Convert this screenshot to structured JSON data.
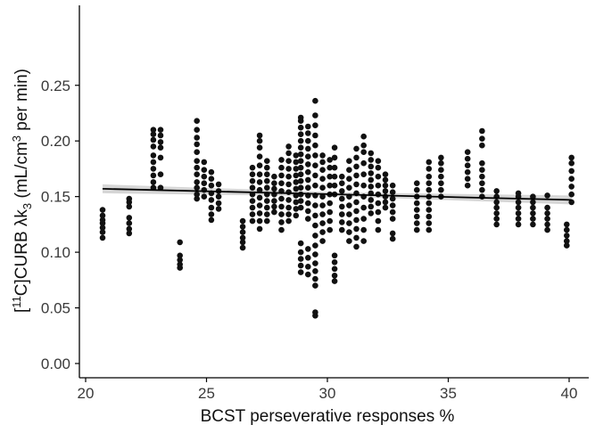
{
  "chart_data": {
    "type": "scatter",
    "xlabel": "BCST perseverative responses %",
    "ylabel_parts": {
      "pre": "[",
      "sup1": "11",
      "mid": "C]CURB λk",
      "sub": "3",
      "post": " (mL/cm",
      "sup2": "3",
      "end": " per min)"
    },
    "xlim": [
      20,
      40.5
    ],
    "ylim": [
      0,
      0.25
    ],
    "x_ticks": [
      20,
      25,
      30,
      35,
      40
    ],
    "x_tick_labels": [
      "20",
      "25",
      "30",
      "35",
      "40"
    ],
    "y_ticks": [
      0.0,
      0.05,
      0.1,
      0.15,
      0.2,
      0.25
    ],
    "y_tick_labels": [
      "0.00",
      "0.05",
      "0.10",
      "0.15",
      "0.20",
      "0.25"
    ],
    "grid": false,
    "legend": "none",
    "regression": {
      "x": [
        20.7,
        40.1
      ],
      "y": [
        0.157,
        0.147
      ],
      "ci_halfwidth": 0.004
    },
    "columns": [
      {
        "x": 20.7,
        "y": [
          0.113,
          0.118,
          0.122,
          0.126,
          0.129,
          0.133,
          0.138
        ]
      },
      {
        "x": 21.8,
        "y": [
          0.117,
          0.121,
          0.126,
          0.131,
          0.141,
          0.145,
          0.148
        ]
      },
      {
        "x": 22.8,
        "y": [
          0.158,
          0.163,
          0.169,
          0.175,
          0.181,
          0.187,
          0.195,
          0.201,
          0.206,
          0.21
        ]
      },
      {
        "x": 23.1,
        "y": [
          0.158,
          0.17,
          0.185,
          0.194,
          0.199,
          0.205,
          0.21
        ]
      },
      {
        "x": 23.9,
        "y": [
          0.086,
          0.089,
          0.093,
          0.097,
          0.109
        ]
      },
      {
        "x": 24.6,
        "y": [
          0.148,
          0.152,
          0.158,
          0.163,
          0.17,
          0.176,
          0.182,
          0.19,
          0.197,
          0.203,
          0.21,
          0.218
        ]
      },
      {
        "x": 24.9,
        "y": [
          0.15,
          0.156,
          0.162,
          0.168,
          0.174,
          0.181
        ]
      },
      {
        "x": 25.2,
        "y": [
          0.129,
          0.134,
          0.14,
          0.147,
          0.153,
          0.16,
          0.166,
          0.172
        ]
      },
      {
        "x": 25.5,
        "y": [
          0.139,
          0.144,
          0.15,
          0.155,
          0.161
        ]
      },
      {
        "x": 26.5,
        "y": [
          0.104,
          0.109,
          0.113,
          0.118,
          0.123,
          0.128
        ]
      },
      {
        "x": 26.9,
        "y": [
          0.128,
          0.134,
          0.14,
          0.146,
          0.152,
          0.158,
          0.164,
          0.17,
          0.176
        ]
      },
      {
        "x": 27.2,
        "y": [
          0.121,
          0.128,
          0.135,
          0.142,
          0.149,
          0.156,
          0.163,
          0.17,
          0.178,
          0.186,
          0.194,
          0.2,
          0.205
        ]
      },
      {
        "x": 27.5,
        "y": [
          0.128,
          0.134,
          0.14,
          0.146,
          0.152,
          0.158,
          0.164,
          0.17,
          0.176,
          0.182
        ]
      },
      {
        "x": 27.8,
        "y": [
          0.136,
          0.141,
          0.146,
          0.152,
          0.157,
          0.162,
          0.168
        ]
      },
      {
        "x": 28.1,
        "y": [
          0.12,
          0.127,
          0.134,
          0.141,
          0.148,
          0.155,
          0.162,
          0.169,
          0.176,
          0.183
        ]
      },
      {
        "x": 28.4,
        "y": [
          0.128,
          0.134,
          0.14,
          0.147,
          0.154,
          0.161,
          0.168,
          0.175,
          0.182,
          0.189,
          0.195
        ]
      },
      {
        "x": 28.7,
        "y": [
          0.133,
          0.139,
          0.145,
          0.151,
          0.157,
          0.163,
          0.169,
          0.175,
          0.181,
          0.187
        ]
      },
      {
        "x": 28.9,
        "y": [
          0.082,
          0.088,
          0.094,
          0.1,
          0.108,
          0.14,
          0.146,
          0.152,
          0.158,
          0.164,
          0.17,
          0.176,
          0.182,
          0.188,
          0.194,
          0.2,
          0.206,
          0.212,
          0.218,
          0.221
        ]
      },
      {
        "x": 29.2,
        "y": [
          0.08,
          0.087,
          0.095,
          0.103,
          0.13,
          0.137,
          0.144,
          0.151,
          0.158,
          0.165,
          0.172,
          0.179,
          0.186,
          0.193,
          0.2,
          0.207,
          0.213
        ]
      },
      {
        "x": 29.5,
        "y": [
          0.043,
          0.046,
          0.07,
          0.076,
          0.083,
          0.09,
          0.098,
          0.106,
          0.115,
          0.124,
          0.133,
          0.142,
          0.151,
          0.16,
          0.169,
          0.178,
          0.187,
          0.196,
          0.205,
          0.214,
          0.223,
          0.236
        ]
      },
      {
        "x": 29.8,
        "y": [
          0.11,
          0.118,
          0.126,
          0.134,
          0.142,
          0.15,
          0.158,
          0.166,
          0.174,
          0.181,
          0.187
        ]
      },
      {
        "x": 30.1,
        "y": [
          0.12,
          0.128,
          0.136,
          0.144,
          0.152,
          0.16,
          0.168,
          0.176,
          0.183
        ]
      },
      {
        "x": 30.3,
        "y": [
          0.074,
          0.079,
          0.085,
          0.091,
          0.097,
          0.152,
          0.16,
          0.168,
          0.176,
          0.185,
          0.194
        ]
      },
      {
        "x": 30.6,
        "y": [
          0.12,
          0.127,
          0.134,
          0.141,
          0.148,
          0.155,
          0.162,
          0.168
        ]
      },
      {
        "x": 30.9,
        "y": [
          0.11,
          0.118,
          0.126,
          0.134,
          0.142,
          0.15,
          0.158,
          0.166,
          0.174,
          0.182
        ]
      },
      {
        "x": 31.2,
        "y": [
          0.105,
          0.113,
          0.121,
          0.129,
          0.137,
          0.145,
          0.153,
          0.161,
          0.169,
          0.177,
          0.185,
          0.193
        ]
      },
      {
        "x": 31.5,
        "y": [
          0.11,
          0.12,
          0.13,
          0.14,
          0.15,
          0.16,
          0.17,
          0.18,
          0.19,
          0.196,
          0.204
        ]
      },
      {
        "x": 31.8,
        "y": [
          0.135,
          0.141,
          0.147,
          0.153,
          0.159,
          0.165,
          0.171,
          0.177,
          0.183,
          0.189
        ]
      },
      {
        "x": 32.1,
        "y": [
          0.12,
          0.128,
          0.136,
          0.144,
          0.152,
          0.16,
          0.168,
          0.176,
          0.182
        ]
      },
      {
        "x": 32.4,
        "y": [
          0.14,
          0.145,
          0.15,
          0.155,
          0.16,
          0.165,
          0.17
        ]
      },
      {
        "x": 32.7,
        "y": [
          0.112,
          0.117,
          0.13,
          0.136,
          0.142,
          0.148,
          0.154,
          0.16
        ]
      },
      {
        "x": 33.7,
        "y": [
          0.12,
          0.126,
          0.132,
          0.138,
          0.144,
          0.15,
          0.156,
          0.162
        ]
      },
      {
        "x": 34.2,
        "y": [
          0.12,
          0.126,
          0.132,
          0.138,
          0.144,
          0.15,
          0.156,
          0.162,
          0.168,
          0.175,
          0.181
        ]
      },
      {
        "x": 34.7,
        "y": [
          0.15,
          0.156,
          0.162,
          0.168,
          0.174,
          0.18,
          0.185
        ]
      },
      {
        "x": 35.8,
        "y": [
          0.16,
          0.166,
          0.172,
          0.178,
          0.184,
          0.19
        ]
      },
      {
        "x": 36.4,
        "y": [
          0.15,
          0.156,
          0.162,
          0.168,
          0.174,
          0.18,
          0.196,
          0.202,
          0.209
        ]
      },
      {
        "x": 37.0,
        "y": [
          0.125,
          0.13,
          0.135,
          0.14,
          0.145,
          0.15,
          0.155
        ]
      },
      {
        "x": 37.9,
        "y": [
          0.125,
          0.13,
          0.135,
          0.14,
          0.145,
          0.15,
          0.153
        ]
      },
      {
        "x": 38.5,
        "y": [
          0.125,
          0.13,
          0.135,
          0.14,
          0.145,
          0.15
        ]
      },
      {
        "x": 39.1,
        "y": [
          0.12,
          0.125,
          0.13,
          0.135,
          0.14,
          0.151
        ]
      },
      {
        "x": 39.9,
        "y": [
          0.106,
          0.11,
          0.115,
          0.12,
          0.125
        ]
      },
      {
        "x": 40.1,
        "y": [
          0.145,
          0.152,
          0.159,
          0.166,
          0.173,
          0.18,
          0.185
        ]
      }
    ]
  }
}
